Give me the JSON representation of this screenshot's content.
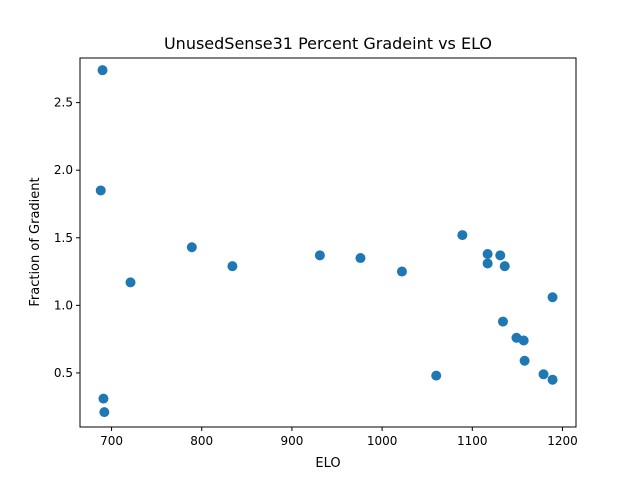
{
  "chart_data": {
    "type": "scatter",
    "title": "UnusedSense31 Percent Gradeint vs ELO",
    "xlabel": "ELO",
    "ylabel": "Fraction of Gradient",
    "xlim": [
      665,
      1215
    ],
    "ylim": [
      0.1,
      2.83
    ],
    "xticks": [
      700,
      800,
      900,
      1000,
      1100,
      1200
    ],
    "yticks": [
      0.5,
      1.0,
      1.5,
      2.0,
      2.5
    ],
    "xtick_labels": [
      "700",
      "800",
      "900",
      "1000",
      "1100",
      "1200"
    ],
    "ytick_labels": [
      "0.5",
      "1.0",
      "1.5",
      "2.0",
      "2.5"
    ],
    "grid": false,
    "color": "#1f77b4",
    "points": [
      {
        "x": 690,
        "y": 2.74
      },
      {
        "x": 688,
        "y": 1.85
      },
      {
        "x": 691,
        "y": 0.31
      },
      {
        "x": 692,
        "y": 0.21
      },
      {
        "x": 721,
        "y": 1.17
      },
      {
        "x": 789,
        "y": 1.43
      },
      {
        "x": 834,
        "y": 1.29
      },
      {
        "x": 931,
        "y": 1.37
      },
      {
        "x": 976,
        "y": 1.35
      },
      {
        "x": 1022,
        "y": 1.25
      },
      {
        "x": 1060,
        "y": 0.48
      },
      {
        "x": 1089,
        "y": 1.52
      },
      {
        "x": 1117,
        "y": 1.38
      },
      {
        "x": 1117,
        "y": 1.31
      },
      {
        "x": 1131,
        "y": 1.37
      },
      {
        "x": 1136,
        "y": 1.29
      },
      {
        "x": 1134,
        "y": 0.88
      },
      {
        "x": 1149,
        "y": 0.76
      },
      {
        "x": 1157,
        "y": 0.74
      },
      {
        "x": 1158,
        "y": 0.59
      },
      {
        "x": 1179,
        "y": 0.49
      },
      {
        "x": 1189,
        "y": 1.06
      },
      {
        "x": 1189,
        "y": 0.45
      }
    ]
  }
}
